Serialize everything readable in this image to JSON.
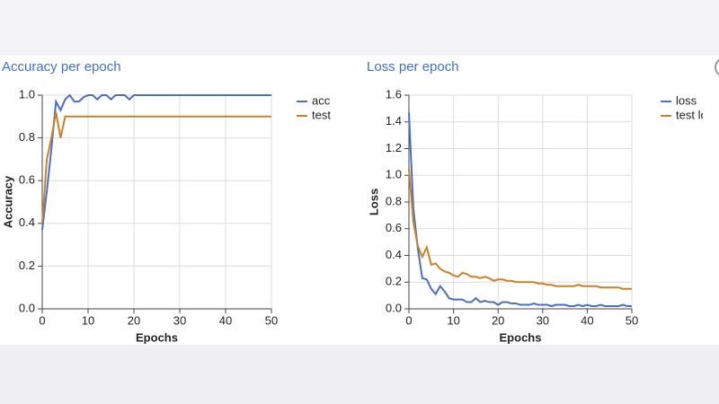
{
  "chart_data": [
    {
      "type": "line",
      "title": "Accuracy per epoch",
      "x_label": "Epochs",
      "y_label": "Accuracy",
      "x": [
        0,
        1,
        2,
        3,
        4,
        5,
        6,
        7,
        8,
        9,
        10,
        11,
        12,
        13,
        14,
        15,
        16,
        17,
        18,
        19,
        20,
        21,
        22,
        23,
        24,
        25,
        26,
        27,
        28,
        29,
        30,
        31,
        32,
        33,
        34,
        35,
        36,
        37,
        38,
        39,
        40,
        41,
        42,
        43,
        44,
        45,
        46,
        47,
        48,
        49,
        50
      ],
      "series": [
        {
          "name": "acc",
          "color": "#4a6fc4",
          "values": [
            0.37,
            0.55,
            0.75,
            0.97,
            0.93,
            0.98,
            1.0,
            0.97,
            0.97,
            0.99,
            1.0,
            1.0,
            0.98,
            1.0,
            1.0,
            0.98,
            1.0,
            1.0,
            1.0,
            0.98,
            1.0,
            1.0,
            1.0,
            1.0,
            1.0,
            1.0,
            1.0,
            1.0,
            1.0,
            1.0,
            1.0,
            1.0,
            1.0,
            1.0,
            1.0,
            1.0,
            1.0,
            1.0,
            1.0,
            1.0,
            1.0,
            1.0,
            1.0,
            1.0,
            1.0,
            1.0,
            1.0,
            1.0,
            1.0,
            1.0,
            1.0
          ]
        },
        {
          "name": "test",
          "color": "#c98226",
          "values": [
            0.4,
            0.7,
            0.8,
            0.92,
            0.8,
            0.9,
            0.9,
            0.9,
            0.9,
            0.9,
            0.9,
            0.9,
            0.9,
            0.9,
            0.9,
            0.9,
            0.9,
            0.9,
            0.9,
            0.9,
            0.9,
            0.9,
            0.9,
            0.9,
            0.9,
            0.9,
            0.9,
            0.9,
            0.9,
            0.9,
            0.9,
            0.9,
            0.9,
            0.9,
            0.9,
            0.9,
            0.9,
            0.9,
            0.9,
            0.9,
            0.9,
            0.9,
            0.9,
            0.9,
            0.9,
            0.9,
            0.9,
            0.9,
            0.9,
            0.9,
            0.9
          ]
        }
      ],
      "xlim": [
        0,
        50
      ],
      "xticks": [
        0,
        10,
        20,
        30,
        40,
        50
      ],
      "ylim": [
        0,
        1.0
      ],
      "yticks": [
        {
          "value": 0,
          "label": "0.0"
        },
        0.2,
        0.4,
        0.6,
        0.8,
        {
          "value": 1,
          "label": "1.0"
        }
      ],
      "grid": true
    },
    {
      "type": "line",
      "title": "Loss per epoch",
      "x_label": "Epochs",
      "y_label": "Loss",
      "x": [
        0,
        1,
        2,
        3,
        4,
        5,
        6,
        7,
        8,
        9,
        10,
        11,
        12,
        13,
        14,
        15,
        16,
        17,
        18,
        19,
        20,
        21,
        22,
        23,
        24,
        25,
        26,
        27,
        28,
        29,
        30,
        31,
        32,
        33,
        34,
        35,
        36,
        37,
        38,
        39,
        40,
        41,
        42,
        43,
        44,
        45,
        46,
        47,
        48,
        49,
        50
      ],
      "series": [
        {
          "name": "loss",
          "color": "#4a6fc4",
          "values": [
            1.47,
            0.75,
            0.45,
            0.23,
            0.22,
            0.15,
            0.11,
            0.17,
            0.13,
            0.08,
            0.07,
            0.07,
            0.07,
            0.05,
            0.05,
            0.08,
            0.05,
            0.06,
            0.05,
            0.05,
            0.03,
            0.05,
            0.05,
            0.04,
            0.04,
            0.03,
            0.03,
            0.03,
            0.04,
            0.03,
            0.03,
            0.03,
            0.02,
            0.03,
            0.03,
            0.03,
            0.02,
            0.02,
            0.03,
            0.02,
            0.03,
            0.02,
            0.02,
            0.03,
            0.02,
            0.02,
            0.02,
            0.02,
            0.03,
            0.02,
            0.02
          ]
        },
        {
          "name": "test loss",
          "color": "#c98226",
          "values": [
            1.05,
            0.65,
            0.47,
            0.39,
            0.46,
            0.33,
            0.34,
            0.3,
            0.28,
            0.27,
            0.25,
            0.24,
            0.27,
            0.26,
            0.24,
            0.24,
            0.23,
            0.24,
            0.23,
            0.21,
            0.22,
            0.22,
            0.21,
            0.21,
            0.2,
            0.2,
            0.2,
            0.2,
            0.2,
            0.19,
            0.19,
            0.18,
            0.18,
            0.17,
            0.17,
            0.17,
            0.17,
            0.17,
            0.18,
            0.17,
            0.17,
            0.17,
            0.17,
            0.16,
            0.16,
            0.16,
            0.16,
            0.16,
            0.15,
            0.15,
            0.15
          ]
        }
      ],
      "xlim": [
        0,
        50
      ],
      "xticks": [
        0,
        10,
        20,
        30,
        40,
        50
      ],
      "ylim": [
        0,
        1.6
      ],
      "yticks": [
        {
          "value": 0,
          "label": "0.0"
        },
        0.2,
        0.4,
        0.6,
        0.8,
        {
          "value": 1,
          "label": "1.0"
        },
        1.2,
        1.4,
        1.6
      ],
      "grid": true
    }
  ]
}
